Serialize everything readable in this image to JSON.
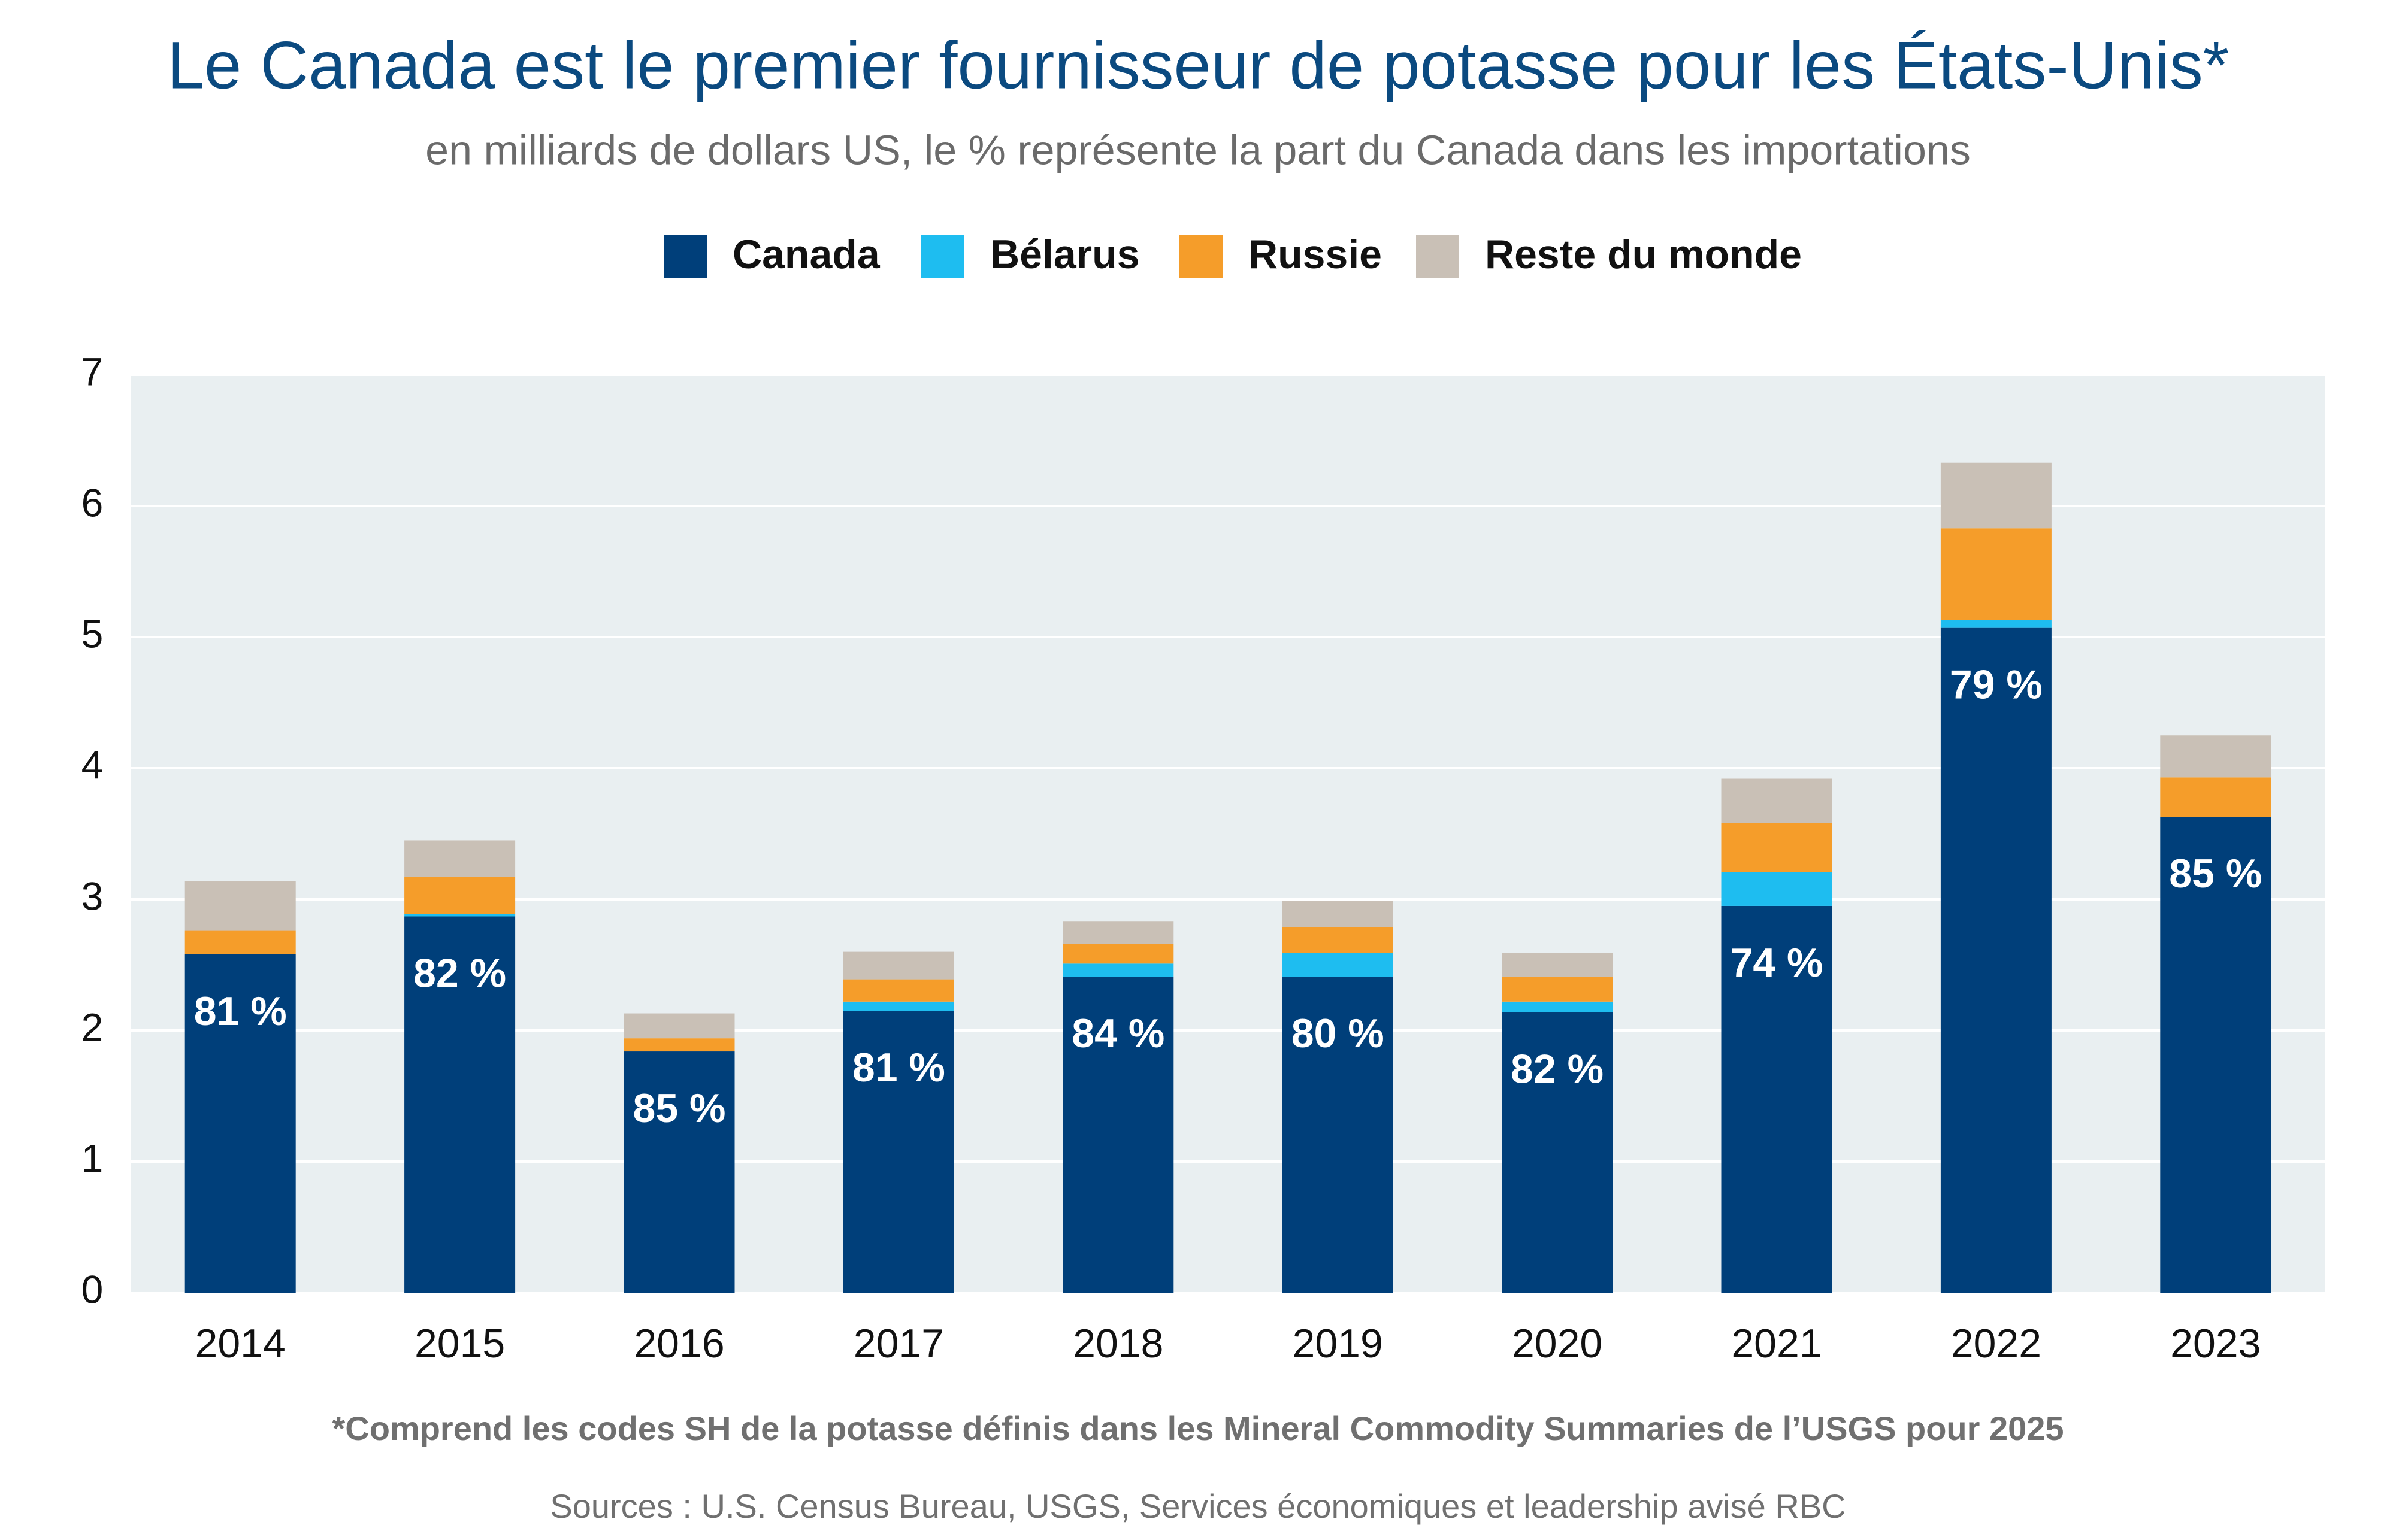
{
  "chart_data": {
    "type": "stacked_bar",
    "title": "Le Canada est le premier fournisseur de potasse pour les États-Unis*",
    "subtitle": "en milliards de dollars US, le % représente la part du Canada dans les importations",
    "categories": [
      "2014",
      "2015",
      "2016",
      "2017",
      "2018",
      "2019",
      "2020",
      "2021",
      "2022",
      "2023"
    ],
    "series": [
      {
        "name": "Canada",
        "color": "#003f7a",
        "values": [
          2.58,
          2.87,
          1.84,
          2.15,
          2.41,
          2.41,
          2.14,
          2.95,
          5.07,
          3.63
        ]
      },
      {
        "name": "Bélarus",
        "color": "#1ebdf0",
        "values": [
          0,
          0.02,
          0,
          0.07,
          0.1,
          0.18,
          0.08,
          0.26,
          0.06,
          0
        ]
      },
      {
        "name": "Russie",
        "color": "#f59d2a",
        "values": [
          0.18,
          0.28,
          0.1,
          0.17,
          0.15,
          0.2,
          0.19,
          0.37,
          0.7,
          0.3
        ]
      },
      {
        "name": "Reste du monde",
        "color": "#c9c0b6",
        "values": [
          0.38,
          0.28,
          0.19,
          0.21,
          0.17,
          0.2,
          0.18,
          0.34,
          0.5,
          0.32
        ]
      }
    ],
    "annotations": [
      "81 %",
      "82 %",
      "85 %",
      "81 %",
      "84 %",
      "80 %",
      "82 %",
      "74 %",
      "79 %",
      "85 %"
    ],
    "ylim": [
      0,
      7
    ],
    "yticks": [
      0,
      1,
      2,
      3,
      4,
      5,
      6,
      7
    ],
    "grid": true,
    "legend": "top",
    "footnote": "*Comprend les codes SH de la potasse définis dans les Mineral Commodity Summaries de l’USGS pour 2025",
    "source": "Sources : U.S. Census Bureau, USGS, Services économiques et leadership avisé RBC"
  }
}
